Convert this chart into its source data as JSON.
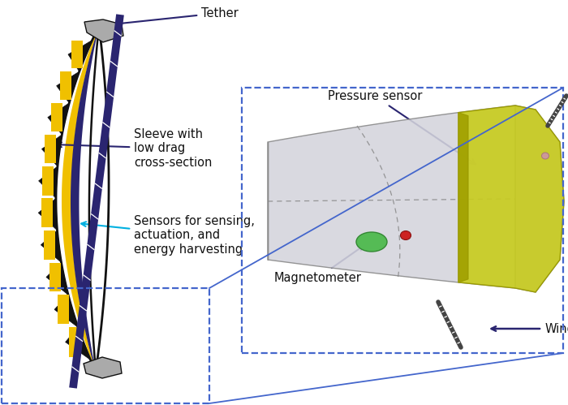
{
  "bg_color": "#ffffff",
  "foil_outer_color": "#111111",
  "foil_yellow_color": "#f0c000",
  "foil_navy_color": "#2a2570",
  "foil_gray_color": "#aaaaaa",
  "tether_color": "#2a2570",
  "arrow_blue_color": "#2a2570",
  "arrow_cyan_color": "#00b0e0",
  "dashed_box_color": "#4466cc",
  "pressure_color": "#c8cc20",
  "magneto_color": "#55bb55",
  "magneto_red_color": "#cc2222",
  "wind_color": "#2a2570",
  "text_color": "#111111",
  "label_tether": "Tether",
  "label_sleeve": "Sleeve with\nlow drag\ncross-section",
  "label_sensors": "Sensors for sensing,\nactuation, and\nenergy harvesting",
  "label_pressure": "Pressure sensor",
  "label_magneto": "Magnetometer",
  "label_wind": "Wind",
  "figsize": [
    7.0,
    4.99
  ],
  "dpi": 100
}
